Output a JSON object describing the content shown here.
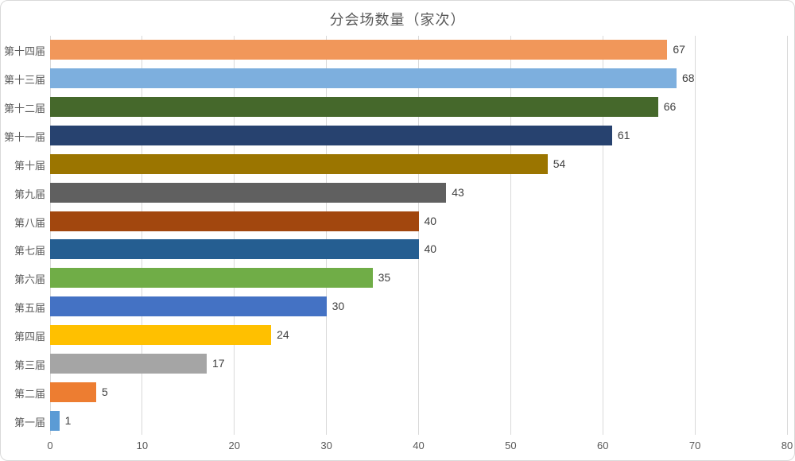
{
  "chart_data": {
    "type": "bar",
    "orientation": "horizontal",
    "title": "分会场数量（家次）",
    "categories": [
      "第十四届",
      "第十三届",
      "第十二届",
      "第十一届",
      "第十届",
      "第九届",
      "第八届",
      "第七届",
      "第六届",
      "第五届",
      "第四届",
      "第三届",
      "第二届",
      "第一届"
    ],
    "values": [
      67,
      68,
      66,
      61,
      54,
      43,
      40,
      40,
      35,
      30,
      24,
      17,
      5,
      1
    ],
    "colors": [
      "#F1975A",
      "#7DAFDE",
      "#45682B",
      "#27426F",
      "#9B7500",
      "#606060",
      "#A2470E",
      "#255E91",
      "#70AD47",
      "#4472C4",
      "#FFC000",
      "#A5A5A5",
      "#ED7D31",
      "#5B9BD5"
    ],
    "xlim": [
      0,
      80
    ],
    "x_ticks": [
      0,
      10,
      20,
      30,
      40,
      50,
      60,
      70,
      80
    ],
    "grid": "vertical-major",
    "legend": "none",
    "colors_meaning": "one color per category point",
    "gridline_color": "#d9d9d9",
    "axis_text_color": "#595959",
    "value_label_color": "#404040",
    "title_color": "#595959"
  }
}
